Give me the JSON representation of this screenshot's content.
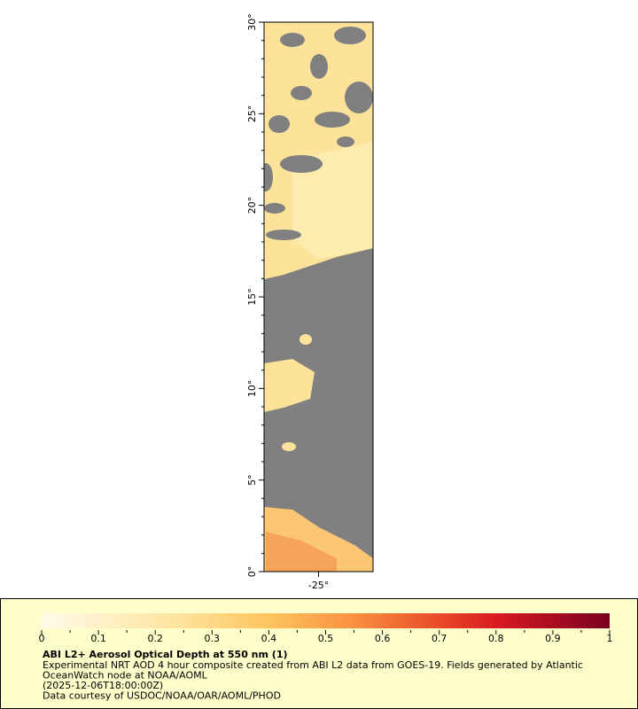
{
  "map": {
    "lat_ticks": [
      {
        "value": 0,
        "label": "0°"
      },
      {
        "value": 5,
        "label": "5°"
      },
      {
        "value": 10,
        "label": "10°"
      },
      {
        "value": 15,
        "label": "15°"
      },
      {
        "value": 20,
        "label": "20°"
      },
      {
        "value": 25,
        "label": "25°"
      },
      {
        "value": 30,
        "label": "30°"
      }
    ],
    "ylim": [
      0,
      30
    ],
    "lon_ticks": [
      {
        "value": -25,
        "label": "-25°"
      }
    ],
    "xlim": [
      -28,
      -22
    ]
  },
  "legend": {
    "colorbar_ticks": [
      0,
      0.1,
      0.2,
      0.3,
      0.4,
      0.5,
      0.6,
      0.7,
      0.8,
      0.9,
      1
    ],
    "title": "ABI L2+ Aerosol Optical Depth at 550 nm (1)",
    "lines": [
      "Experimental NRT AOD 4 hour composite created from ABI L2 data from GOES-19. Fields generated by Atlantic",
      "OceanWatch node at NOAA/AOML",
      "(2025-12-06T18:00:00Z)",
      "Data courtesy of USDOC/NOAA/OAR/AOML/PHOD"
    ]
  }
}
